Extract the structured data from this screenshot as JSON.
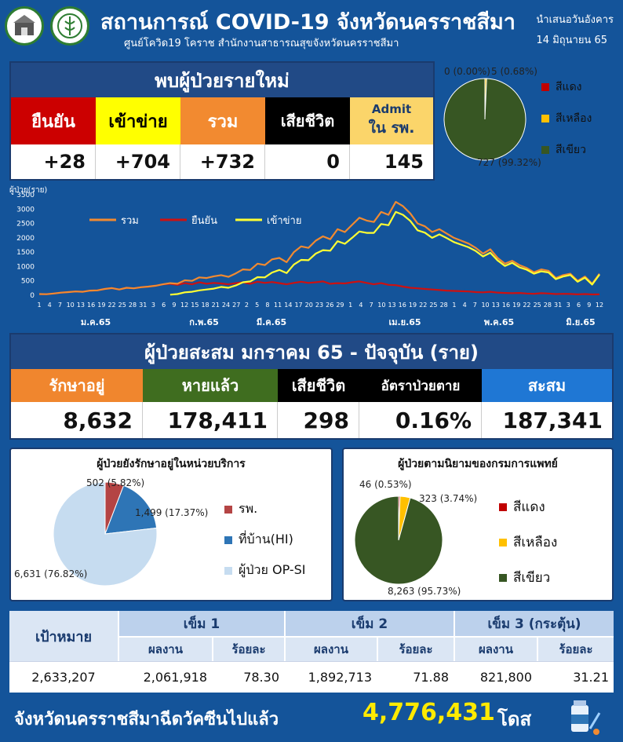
{
  "header": {
    "title": "สถานการณ์ COVID-19 จังหวัดนครราชสีมา",
    "subtitle": "ศูนย์โควิด19 โคราช สำนักงานสาธารณสุขจังหวัดนครราชสีมา",
    "date_line1": "นำเสนอวันอังคาร",
    "date_line2": "14 มิถุนายน 65"
  },
  "new_cases": {
    "title": "พบผู้ป่วยรายใหม่",
    "headers": [
      "ยืนยัน",
      "เข้าข่าย",
      "รวม",
      "เสียชีวิต"
    ],
    "admit_line1": "Admit",
    "admit_line2": "ใน รพ.",
    "values": [
      "+28",
      "+704",
      "+732",
      "0",
      "145"
    ],
    "colors": [
      "#cc0000",
      "#ffff00",
      "#f28a30",
      "#000000",
      "#fbd56a"
    ]
  },
  "severity_pie": {
    "labels": [
      "0 (0.00%)",
      "5 (0.68%)",
      "727 (99.32%)"
    ],
    "legend": [
      "สีแดง",
      "สีเหลือง",
      "สีเขียว"
    ],
    "colors": [
      "#c00000",
      "#ffc000",
      "#375623"
    ]
  },
  "cumulative": {
    "title": "ผู้ป่วยสะสม มกราคม 65 - ปัจจุบัน (ราย)",
    "headers": [
      "รักษาอยู่",
      "หายแล้ว",
      "เสียชีวิต",
      "อัตราป่วยตาย",
      "สะสม"
    ],
    "values": [
      "8,632",
      "178,411",
      "298",
      "0.16%",
      "187,341"
    ],
    "colors": [
      "#f0862e",
      "#3f6d1f",
      "#000000",
      "#000000",
      "#1f77d4"
    ]
  },
  "treatment_pie": {
    "title": "ผู้ป่วยยังรักษาอยู่ในหน่วยบริการ",
    "labels": [
      "502 (5.82%)",
      "1,499 (17.37%)",
      "6,631 (76.82%)"
    ],
    "legend": [
      "รพ.",
      "ที่บ้าน(HI)",
      "ผู้ป่วย OP-SI"
    ],
    "colors": [
      "#b44444",
      "#2e75b6",
      "#c6dcf0"
    ]
  },
  "dms_pie": {
    "title": "ผู้ป่วยตามนิยามของกรมการแพทย์",
    "labels": [
      "46 (0.53%)",
      "323 (3.74%)",
      "8,263 (95.73%)"
    ],
    "legend": [
      "สีแดง",
      "สีเหลือง",
      "สีเขียว"
    ],
    "colors": [
      "#c00000",
      "#ffc000",
      "#375623"
    ]
  },
  "vaccine": {
    "target_label": "เป้าหมาย",
    "target_value": "2,633,207",
    "dose_headers": [
      "เข็ม 1",
      "เข็ม 2",
      "เข็ม 3 (กระตุ้น)"
    ],
    "sub_result": "ผลงาน",
    "sub_percent": "ร้อยละ",
    "results": [
      "2,061,918",
      "1,892,713",
      "821,800"
    ],
    "percents": [
      "78.30",
      "71.88",
      "31.21"
    ],
    "footer_text": "จังหวัดนครราชสีมาฉีดวัคซีนไปแล้ว",
    "footer_total": "4,776,431",
    "footer_unit": "โดส"
  },
  "chart_data": [
    {
      "type": "line",
      "ylabel": "ผู้ป่วย(ราย)",
      "ylim": [
        0,
        3500
      ],
      "yticks": [
        0,
        500,
        1000,
        1500,
        2000,
        2500,
        3000,
        3500
      ],
      "x_tick_labels": [
        "1",
        "4",
        "7",
        "10",
        "13",
        "16",
        "19",
        "22",
        "25",
        "28",
        "31",
        "3",
        "6",
        "9",
        "12",
        "15",
        "18",
        "21",
        "24",
        "27",
        "2",
        "5",
        "8",
        "11",
        "14",
        "17",
        "20",
        "23",
        "26",
        "29",
        "1",
        "4",
        "7",
        "10",
        "13",
        "16",
        "19",
        "22",
        "25",
        "28",
        "1",
        "4",
        "7",
        "10",
        "13",
        "16",
        "19",
        "22",
        "25",
        "28",
        "31",
        "3",
        "6",
        "9",
        "12"
      ],
      "month_labels": [
        "ม.ค.65",
        "ก.พ.65",
        "มี.ค.65",
        "เม.ย.65",
        "พ.ค.65",
        "มิ.ย.65"
      ],
      "legend": [
        "รวม",
        "ยืนยัน",
        "เข้าข่าย"
      ],
      "colors": {
        "total": "#f28a30",
        "confirmed": "#cc1111",
        "probable": "#ffff33"
      },
      "series": [
        {
          "name": "รวม",
          "values": [
            40,
            35,
            60,
            90,
            110,
            130,
            120,
            160,
            170,
            220,
            250,
            200,
            260,
            240,
            280,
            300,
            330,
            380,
            420,
            400,
            520,
            500,
            620,
            600,
            660,
            700,
            640,
            760,
            900,
            880,
            1100,
            1050,
            1250,
            1300,
            1150,
            1500,
            1700,
            1650,
            1900,
            2050,
            1950,
            2300,
            2200,
            2450,
            2700,
            2600,
            2550,
            2900,
            2800,
            3250,
            3100,
            2850,
            2500,
            2400,
            2200,
            2300,
            2150,
            2000,
            1900,
            1800,
            1650,
            1450,
            1600,
            1300,
            1100,
            1200,
            1050,
            950,
            800,
            900,
            850,
            600,
            700,
            750,
            500,
            650,
            400,
            750
          ]
        },
        {
          "name": "ยืนยัน",
          "values": [
            40,
            35,
            60,
            90,
            110,
            130,
            120,
            160,
            170,
            220,
            250,
            200,
            260,
            240,
            280,
            300,
            330,
            380,
            400,
            360,
            420,
            380,
            450,
            400,
            430,
            410,
            380,
            420,
            450,
            400,
            470,
            430,
            460,
            420,
            380,
            430,
            470,
            430,
            450,
            480,
            400,
            420,
            410,
            450,
            480,
            430,
            380,
            420,
            360,
            350,
            300,
            260,
            240,
            220,
            200,
            180,
            160,
            150,
            140,
            130,
            110,
            100,
            120,
            90,
            80,
            70,
            80,
            60,
            50,
            70,
            60,
            40,
            50,
            45,
            30,
            40,
            28,
            30
          ]
        },
        {
          "name": "เข้าข่าย",
          "values": [
            null,
            null,
            null,
            null,
            null,
            null,
            null,
            null,
            null,
            null,
            null,
            null,
            null,
            null,
            null,
            null,
            null,
            null,
            20,
            40,
            100,
            120,
            170,
            200,
            230,
            290,
            260,
            340,
            450,
            480,
            630,
            620,
            790,
            880,
            770,
            1070,
            1230,
            1220,
            1450,
            1570,
            1550,
            1880,
            1790,
            2000,
            2220,
            2170,
            2170,
            2480,
            2440,
            2900,
            2800,
            2590,
            2260,
            2180,
            2000,
            2120,
            1990,
            1850,
            1760,
            1670,
            1540,
            1350,
            1480,
            1210,
            1020,
            1130,
            970,
            890,
            750,
            830,
            790,
            560,
            650,
            705,
            470,
            610,
            372,
            720
          ]
        }
      ]
    },
    {
      "type": "pie",
      "title": "",
      "categories": [
        "สีแดง",
        "สีเหลือง",
        "สีเขียว"
      ],
      "values": [
        0,
        5,
        727
      ]
    },
    {
      "type": "pie",
      "title": "ผู้ป่วยยังรักษาอยู่ในหน่วยบริการ",
      "categories": [
        "รพ.",
        "ที่บ้าน(HI)",
        "ผู้ป่วย OP-SI"
      ],
      "values": [
        502,
        1499,
        6631
      ]
    },
    {
      "type": "pie",
      "title": "ผู้ป่วยตามนิยามของกรมการแพทย์",
      "categories": [
        "สีแดง",
        "สีเหลือง",
        "สีเขียว"
      ],
      "values": [
        46,
        323,
        8263
      ]
    }
  ]
}
